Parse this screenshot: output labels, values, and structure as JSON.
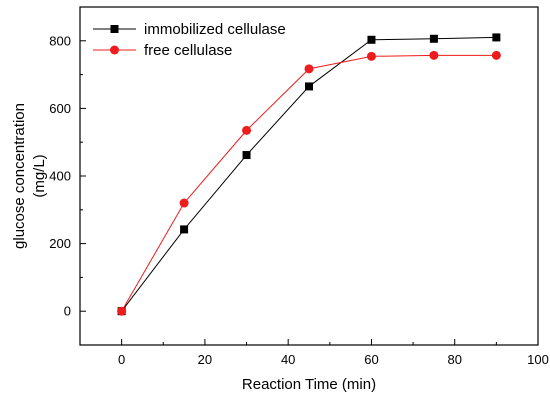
{
  "chart_data": {
    "type": "line",
    "xlabel": "Reaction Time (min)",
    "ylabel_line1": "glucose concentration",
    "ylabel_line2": "(mg/L)",
    "xlim": [
      -10,
      100
    ],
    "ylim": [
      -100,
      900
    ],
    "xticks": [
      0,
      20,
      40,
      60,
      80,
      100
    ],
    "yticks": [
      0,
      200,
      400,
      600,
      800
    ],
    "grid": false,
    "legend_position": "top-left",
    "series": [
      {
        "name": "immobilized cellulase",
        "color": "#000000",
        "marker": "square",
        "x": [
          0,
          15,
          30,
          45,
          60,
          75,
          90
        ],
        "y": [
          0,
          242,
          462,
          665,
          803,
          806,
          810
        ]
      },
      {
        "name": "free cellulase",
        "color": "#ee1c1c",
        "marker": "circle",
        "x": [
          0,
          15,
          30,
          45,
          60,
          75,
          90
        ],
        "y": [
          0,
          320,
          535,
          717,
          754,
          757,
          757
        ]
      }
    ]
  }
}
